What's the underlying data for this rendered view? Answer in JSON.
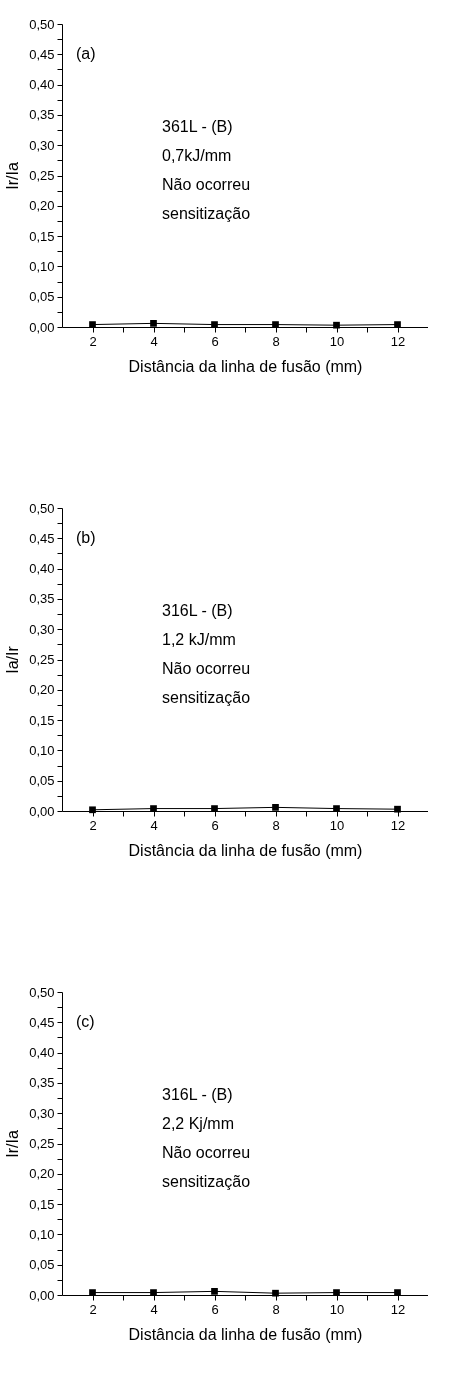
{
  "chart_data": [
    {
      "type": "line",
      "xlabel": "Distância da linha de fusão (mm)",
      "ylabel": "Ir/Ia",
      "x": [
        2,
        4,
        6,
        8,
        10,
        12
      ],
      "series": [
        {
          "color": "#000000",
          "values": [
            0.004,
            0.006,
            0.004,
            0.004,
            0.003,
            0.004
          ]
        }
      ],
      "marker": "square",
      "annotations": [
        "(a)",
        "361L - (B)",
        "0,7kJ/mm",
        "Não ocorreu",
        "sensitização"
      ],
      "xlim": [
        1,
        13
      ],
      "ylim": [
        0,
        0.5
      ],
      "xticks": [
        2,
        {
          "value": 3,
          "label": null
        },
        4,
        {
          "value": 5,
          "label": null
        },
        6,
        {
          "value": 7,
          "label": null
        },
        8,
        {
          "value": 9,
          "label": null
        },
        10,
        {
          "value": 11,
          "label": null
        },
        12
      ],
      "yticks": [
        {
          "value": 0,
          "label": "0,00"
        },
        {
          "value": 0.025,
          "label": null
        },
        {
          "value": 0.05,
          "label": "0,05"
        },
        {
          "value": 0.075,
          "label": null
        },
        {
          "value": 0.1,
          "label": "0,10"
        },
        {
          "value": 0.125,
          "label": null
        },
        {
          "value": 0.15,
          "label": "0,15"
        },
        {
          "value": 0.175,
          "label": null
        },
        {
          "value": 0.2,
          "label": "0,20"
        },
        {
          "value": 0.225,
          "label": null
        },
        {
          "value": 0.25,
          "label": "0,25"
        },
        {
          "value": 0.275,
          "label": null
        },
        {
          "value": 0.3,
          "label": "0,30"
        },
        {
          "value": 0.325,
          "label": null
        },
        {
          "value": 0.35,
          "label": "0,35"
        },
        {
          "value": 0.375,
          "label": null
        },
        {
          "value": 0.4,
          "label": "0,40"
        },
        {
          "value": 0.425,
          "label": null
        },
        {
          "value": 0.45,
          "label": "0,45"
        },
        {
          "value": 0.475,
          "label": null
        },
        {
          "value": 0.5,
          "label": "0,50"
        }
      ]
    },
    {
      "type": "line",
      "xlabel": "Distância da linha de fusão (mm)",
      "ylabel": "Ia/Ir",
      "x": [
        2,
        4,
        6,
        8,
        10,
        12
      ],
      "series": [
        {
          "color": "#000000",
          "values": [
            0.002,
            0.004,
            0.004,
            0.006,
            0.004,
            0.003
          ]
        }
      ],
      "marker": "square",
      "annotations": [
        "(b)",
        "316L - (B)",
        "1,2 kJ/mm",
        "Não ocorreu",
        "sensitização"
      ],
      "xlim": [
        1,
        13
      ],
      "ylim": [
        0,
        0.5
      ],
      "xticks": [
        2,
        {
          "value": 3,
          "label": null
        },
        4,
        {
          "value": 5,
          "label": null
        },
        6,
        {
          "value": 7,
          "label": null
        },
        8,
        {
          "value": 9,
          "label": null
        },
        10,
        {
          "value": 11,
          "label": null
        },
        12
      ],
      "yticks": [
        {
          "value": 0,
          "label": "0,00"
        },
        {
          "value": 0.025,
          "label": null
        },
        {
          "value": 0.05,
          "label": "0,05"
        },
        {
          "value": 0.075,
          "label": null
        },
        {
          "value": 0.1,
          "label": "0,10"
        },
        {
          "value": 0.125,
          "label": null
        },
        {
          "value": 0.15,
          "label": "0,15"
        },
        {
          "value": 0.175,
          "label": null
        },
        {
          "value": 0.2,
          "label": "0,20"
        },
        {
          "value": 0.225,
          "label": null
        },
        {
          "value": 0.25,
          "label": "0,25"
        },
        {
          "value": 0.275,
          "label": null
        },
        {
          "value": 0.3,
          "label": "0,30"
        },
        {
          "value": 0.325,
          "label": null
        },
        {
          "value": 0.35,
          "label": "0,35"
        },
        {
          "value": 0.375,
          "label": null
        },
        {
          "value": 0.4,
          "label": "0,40"
        },
        {
          "value": 0.425,
          "label": null
        },
        {
          "value": 0.45,
          "label": "0,45"
        },
        {
          "value": 0.475,
          "label": null
        },
        {
          "value": 0.5,
          "label": "0,50"
        }
      ]
    },
    {
      "type": "line",
      "xlabel": "Distância da linha de fusão (mm)",
      "ylabel": "Ir/Ia",
      "x": [
        2,
        4,
        6,
        8,
        10,
        12
      ],
      "series": [
        {
          "color": "#000000",
          "values": [
            0.004,
            0.004,
            0.006,
            0.003,
            0.004,
            0.004
          ]
        }
      ],
      "marker": "square",
      "annotations": [
        "(c)",
        "316L - (B)",
        "2,2 Kj/mm",
        "Não ocorreu",
        "sensitização"
      ],
      "xlim": [
        1,
        13
      ],
      "ylim": [
        0,
        0.5
      ],
      "xticks": [
        2,
        {
          "value": 3,
          "label": null
        },
        4,
        {
          "value": 5,
          "label": null
        },
        6,
        {
          "value": 7,
          "label": null
        },
        8,
        {
          "value": 9,
          "label": null
        },
        10,
        {
          "value": 11,
          "label": null
        },
        12
      ],
      "yticks": [
        {
          "value": 0,
          "label": "0,00"
        },
        {
          "value": 0.025,
          "label": null
        },
        {
          "value": 0.05,
          "label": "0,05"
        },
        {
          "value": 0.075,
          "label": null
        },
        {
          "value": 0.1,
          "label": "0,10"
        },
        {
          "value": 0.125,
          "label": null
        },
        {
          "value": 0.15,
          "label": "0,15"
        },
        {
          "value": 0.175,
          "label": null
        },
        {
          "value": 0.2,
          "label": "0,20"
        },
        {
          "value": 0.225,
          "label": null
        },
        {
          "value": 0.25,
          "label": "0,25"
        },
        {
          "value": 0.275,
          "label": null
        },
        {
          "value": 0.3,
          "label": "0,30"
        },
        {
          "value": 0.325,
          "label": null
        },
        {
          "value": 0.35,
          "label": "0,35"
        },
        {
          "value": 0.375,
          "label": null
        },
        {
          "value": 0.4,
          "label": "0,40"
        },
        {
          "value": 0.425,
          "label": null
        },
        {
          "value": 0.45,
          "label": "0,45"
        },
        {
          "value": 0.475,
          "label": null
        },
        {
          "value": 0.5,
          "label": "0,50"
        }
      ]
    }
  ]
}
